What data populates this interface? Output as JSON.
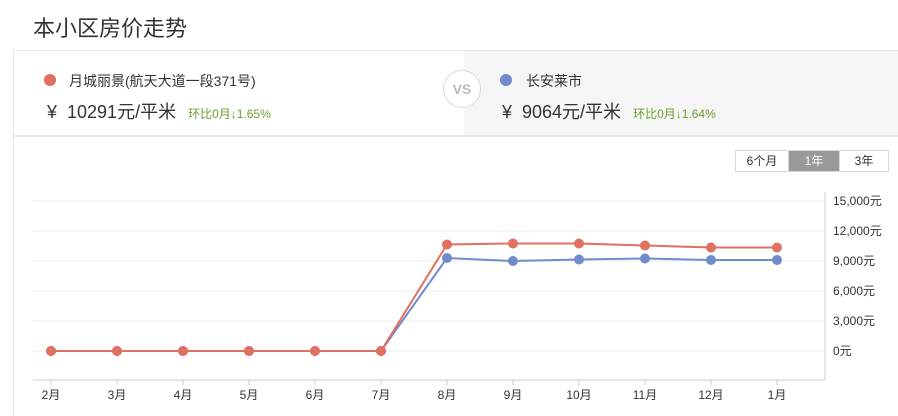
{
  "page": {
    "title": "本小区房价走势"
  },
  "compare": {
    "left": {
      "name": "月城丽景(航天大道一段371号)",
      "currency": "¥",
      "price": "10291元/平米",
      "change": "环比0月↓1.65%",
      "color": "#e0705f"
    },
    "vs_label": "VS",
    "right": {
      "name": "长安莱市",
      "currency": "¥",
      "price": "9064元/平米",
      "change": "环比0月↓1.64%",
      "color": "#6f8bca"
    }
  },
  "range_tabs": {
    "items": [
      "6个月",
      "1年",
      "3年"
    ],
    "active": "1年"
  },
  "chart_data": {
    "type": "line",
    "categories": [
      "2月",
      "3月",
      "4月",
      "5月",
      "6月",
      "7月",
      "8月",
      "9月",
      "10月",
      "11月",
      "12月",
      "1月"
    ],
    "y_ticks": [
      "0元",
      "3,000元",
      "6,000元",
      "9,000元",
      "12,000元",
      "15,000元"
    ],
    "ylim": [
      0,
      15000
    ],
    "grid": true,
    "series": [
      {
        "name": "月城丽景(航天大道一段371号)",
        "color": "#e0705f",
        "values": [
          0,
          0,
          0,
          0,
          0,
          0,
          10650,
          10750,
          10750,
          10550,
          10350,
          10350
        ]
      },
      {
        "name": "长安莱市",
        "color": "#6f8bca",
        "values": [
          0,
          0,
          0,
          0,
          0,
          0,
          9300,
          9000,
          9150,
          9250,
          9100,
          9100
        ]
      }
    ]
  }
}
